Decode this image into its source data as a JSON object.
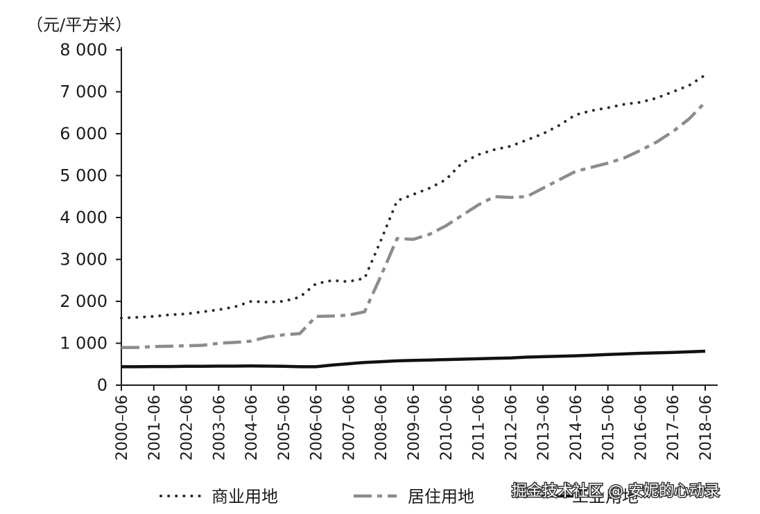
{
  "chart_data": {
    "type": "line",
    "ylabel": "（元/平方米）",
    "ylim": [
      0,
      8000
    ],
    "yticks": [
      {
        "value": 0,
        "label": "0"
      },
      {
        "value": 1000,
        "label": "1 000"
      },
      {
        "value": 2000,
        "label": "2 000"
      },
      {
        "value": 3000,
        "label": "3 000"
      },
      {
        "value": 4000,
        "label": "4 000"
      },
      {
        "value": 5000,
        "label": "5 000"
      },
      {
        "value": 6000,
        "label": "6 000"
      },
      {
        "value": 7000,
        "label": "7 000"
      },
      {
        "value": 8000,
        "label": "8 000"
      }
    ],
    "categories": [
      "2000–06",
      "2001–06",
      "2002–06",
      "2003–06",
      "2004–06",
      "2005–06",
      "2006–06",
      "2007–06",
      "2008–06",
      "2009–06",
      "2010–06",
      "2011–06",
      "2012–06",
      "2013–06",
      "2014–06",
      "2015–06",
      "2016–06",
      "2017–06",
      "2018–06"
    ],
    "series": [
      {
        "name": "商业用地",
        "style": "dotted",
        "color": "#2a2a2a",
        "x": [
          2000.0,
          2000.5,
          2001.0,
          2001.5,
          2002.0,
          2002.5,
          2003.0,
          2003.5,
          2004.0,
          2004.5,
          2005.0,
          2005.5,
          2006.0,
          2006.5,
          2007.0,
          2007.5,
          2008.0,
          2008.5,
          2009.0,
          2009.5,
          2010.0,
          2010.5,
          2011.0,
          2011.5,
          2012.0,
          2012.5,
          2013.0,
          2013.5,
          2014.0,
          2014.5,
          2015.0,
          2015.5,
          2016.0,
          2016.5,
          2017.0,
          2017.5,
          2018.0
        ],
        "y": [
          1600,
          1620,
          1640,
          1680,
          1700,
          1750,
          1800,
          1870,
          2000,
          1980,
          2000,
          2100,
          2420,
          2500,
          2470,
          2550,
          3450,
          4400,
          4550,
          4700,
          4900,
          5300,
          5500,
          5620,
          5700,
          5850,
          6000,
          6200,
          6450,
          6550,
          6620,
          6700,
          6750,
          6850,
          7000,
          7150,
          7400
        ]
      },
      {
        "name": "居住用地",
        "style": "dashdot",
        "color": "#8c8c8c",
        "x": [
          2000.0,
          2000.5,
          2001.0,
          2001.5,
          2002.0,
          2002.5,
          2003.0,
          2003.5,
          2004.0,
          2004.5,
          2005.0,
          2005.5,
          2006.0,
          2006.5,
          2007.0,
          2007.5,
          2008.0,
          2008.5,
          2009.0,
          2009.5,
          2010.0,
          2010.5,
          2011.0,
          2011.5,
          2012.0,
          2012.5,
          2013.0,
          2013.5,
          2014.0,
          2014.5,
          2015.0,
          2015.5,
          2016.0,
          2016.5,
          2017.0,
          2017.5,
          2018.0
        ],
        "y": [
          900,
          900,
          920,
          930,
          940,
          950,
          1000,
          1020,
          1050,
          1150,
          1200,
          1230,
          1640,
          1650,
          1670,
          1750,
          2600,
          3500,
          3480,
          3600,
          3800,
          4050,
          4300,
          4500,
          4480,
          4500,
          4700,
          4900,
          5100,
          5200,
          5300,
          5420,
          5600,
          5800,
          6050,
          6350,
          6750
        ]
      },
      {
        "name": "工业用地",
        "style": "solid",
        "color": "#111111",
        "x": [
          2000.0,
          2000.5,
          2001.0,
          2001.5,
          2002.0,
          2002.5,
          2003.0,
          2003.5,
          2004.0,
          2004.5,
          2005.0,
          2005.5,
          2006.0,
          2006.5,
          2007.0,
          2007.5,
          2008.0,
          2008.5,
          2009.0,
          2009.5,
          2010.0,
          2010.5,
          2011.0,
          2011.5,
          2012.0,
          2012.5,
          2013.0,
          2013.5,
          2014.0,
          2014.5,
          2015.0,
          2015.5,
          2016.0,
          2016.5,
          2017.0,
          2017.5,
          2018.0
        ],
        "y": [
          440,
          440,
          445,
          445,
          450,
          450,
          455,
          455,
          458,
          455,
          450,
          440,
          440,
          480,
          510,
          540,
          560,
          580,
          590,
          600,
          610,
          620,
          630,
          640,
          650,
          670,
          680,
          690,
          700,
          715,
          730,
          745,
          760,
          770,
          780,
          795,
          810
        ]
      }
    ],
    "legend": {
      "placement": "bottom"
    },
    "grid": false
  },
  "watermark": {
    "text": "掘金技术社区 @ 安妮的心动录"
  }
}
